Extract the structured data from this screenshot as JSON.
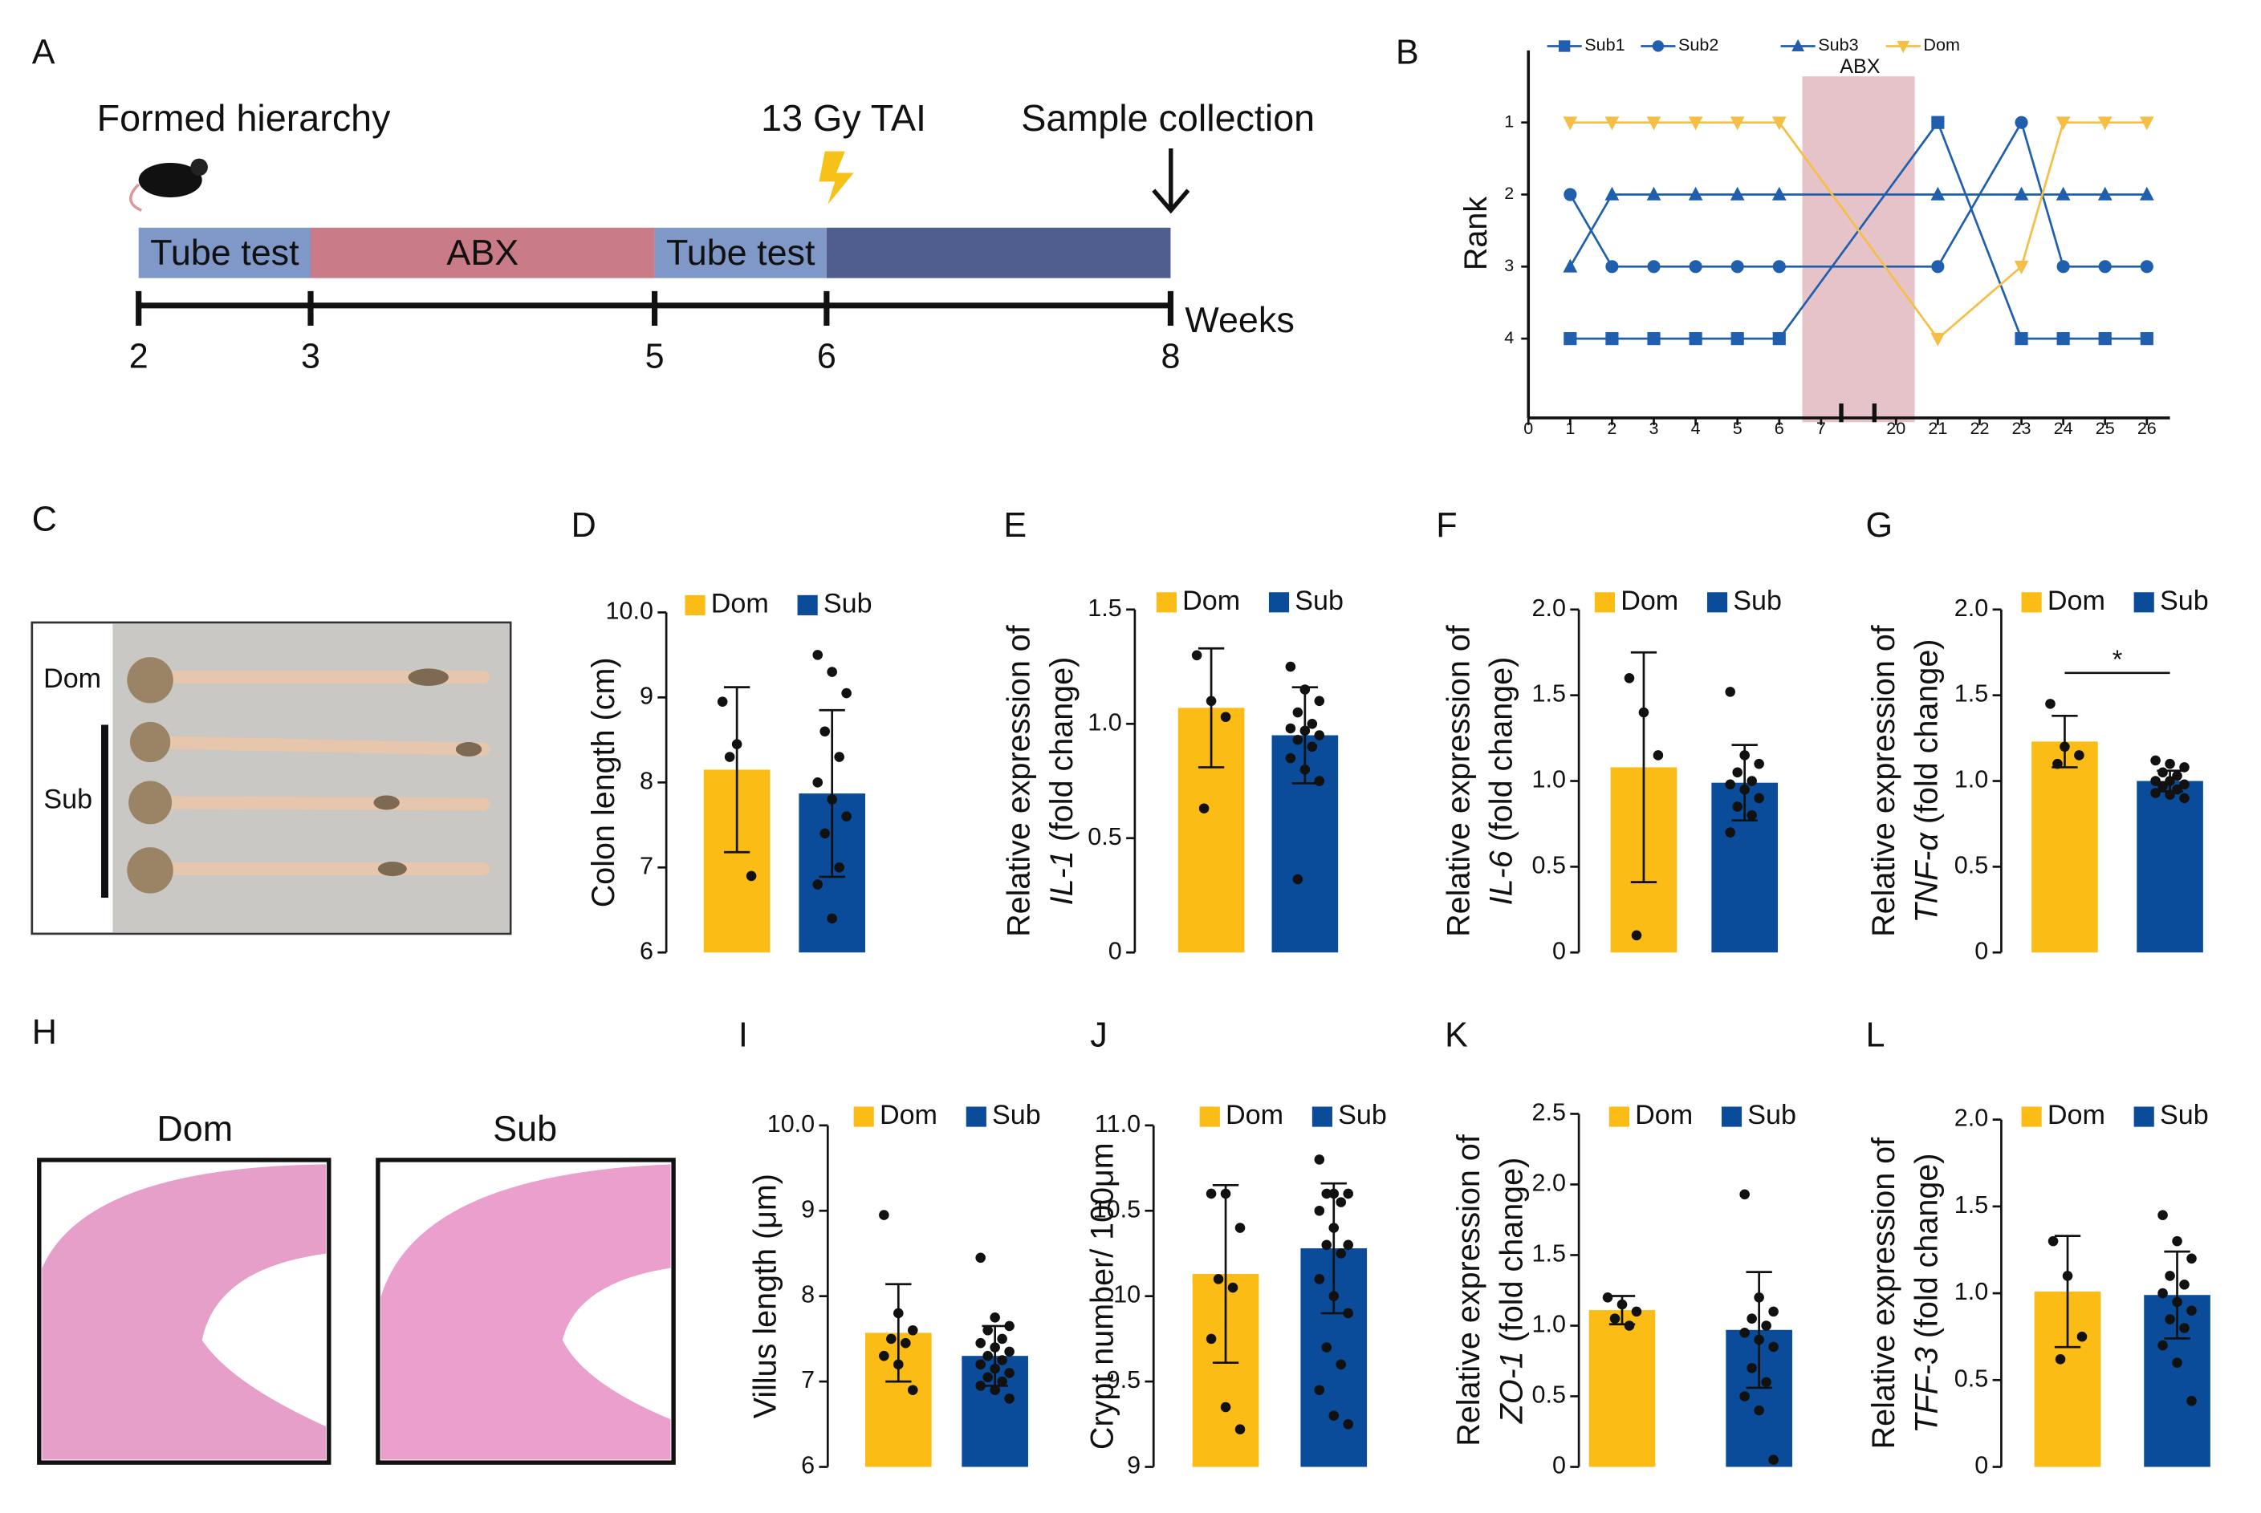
{
  "timeline": {
    "label": "A",
    "events": [
      "Formed hierarchy",
      "13 Gy TAI",
      "Sample collection"
    ],
    "segments": [
      {
        "label": "Tube test",
        "from": 2,
        "to": 3,
        "color": "#8098c8"
      },
      {
        "label": "ABX",
        "from": 3,
        "to": 5,
        "color": "#c97c88"
      },
      {
        "label": "Tube test",
        "from": 5,
        "to": 6,
        "color": "#8098c8"
      },
      {
        "from": 6,
        "to": 8,
        "color": "#4f5e8e"
      }
    ],
    "weeks": [
      2,
      3,
      5,
      6,
      8
    ],
    "unit": "Weeks"
  },
  "photos": [
    {
      "label": "C",
      "groups": [
        "Dom",
        "Sub"
      ]
    },
    {
      "label": "H",
      "groups": [
        "Dom",
        "Sub"
      ]
    }
  ],
  "chart_data": [
    {
      "type": "line",
      "label": "B",
      "ylabel": "Rank",
      "annotation": "ABX",
      "xticks": [
        0,
        1,
        2,
        3,
        4,
        5,
        6,
        7,
        20,
        21,
        22,
        23,
        24,
        25,
        26
      ],
      "x": [
        1,
        2,
        3,
        4,
        5,
        6,
        21,
        23,
        24,
        25,
        26
      ],
      "ylim": [
        5.1,
        0
      ],
      "yticks": [
        1,
        2,
        3,
        4
      ],
      "series": [
        {
          "name": "Sub1",
          "color": "#1f5fad",
          "marker": "square",
          "values": [
            4,
            4,
            4,
            4,
            4,
            4,
            1,
            4,
            4,
            4,
            4
          ]
        },
        {
          "name": "Sub2",
          "color": "#1f5fad",
          "marker": "circle",
          "values": [
            2,
            3,
            3,
            3,
            3,
            3,
            3,
            1,
            3,
            3,
            3
          ]
        },
        {
          "name": "Sub3",
          "color": "#1f5fad",
          "marker": "triangle-up",
          "values": [
            3,
            2,
            2,
            2,
            2,
            2,
            2,
            2,
            2,
            2,
            2
          ]
        },
        {
          "name": "Dom",
          "color": "#f5bf45",
          "marker": "triangle-down",
          "values": [
            1,
            1,
            1,
            1,
            1,
            1,
            4,
            3,
            1,
            1,
            1
          ]
        }
      ]
    },
    {
      "type": "bar",
      "label": "D",
      "ylabel": "Colon length (cm)",
      "categories": [
        "Dom",
        "Sub"
      ],
      "colors": [
        "#fbbc16",
        "#0a4b9a"
      ],
      "values": [
        8.15,
        7.87
      ],
      "errors": [
        0.97,
        0.98
      ],
      "points": [
        [
          8.95,
          8.45,
          6.9,
          8.3
        ],
        [
          9.5,
          9.3,
          9.05,
          8.6,
          8.3,
          8.0,
          7.8,
          7.6,
          7.4,
          7.0,
          6.8,
          6.4
        ]
      ],
      "ylim": [
        6,
        10
      ],
      "yticks": [
        6,
        7,
        8,
        9,
        {
          "value": 10,
          "label": "10.0"
        }
      ]
    },
    {
      "type": "bar",
      "label": "E",
      "ylabel": "Relative expression of",
      "ylabel_gene": "IL-1",
      "ylabel_unit": " (fold change)",
      "categories": [
        "Dom",
        "Sub"
      ],
      "colors": [
        "#fbbc16",
        "#0a4b9a"
      ],
      "values": [
        1.07,
        0.95
      ],
      "errors": [
        0.26,
        0.21
      ],
      "points": [
        [
          1.3,
          1.1,
          1.03,
          0.63
        ],
        [
          1.25,
          1.15,
          1.1,
          1.05,
          1.0,
          0.98,
          0.97,
          0.95,
          0.93,
          0.9,
          0.85,
          0.8,
          0.75,
          0.32
        ]
      ],
      "ylim": [
        0,
        1.5
      ],
      "yticks": [
        0,
        0.5,
        {
          "value": 1,
          "label": "1.0"
        },
        1.5
      ]
    },
    {
      "type": "bar",
      "label": "F",
      "ylabel": "Relative expression of",
      "ylabel_gene": "IL-6",
      "ylabel_unit": " (fold change)",
      "categories": [
        "Dom",
        "Sub"
      ],
      "colors": [
        "#fbbc16",
        "#0a4b9a"
      ],
      "values": [
        1.08,
        0.99
      ],
      "errors": [
        0.67,
        0.22
      ],
      "points": [
        [
          1.6,
          1.4,
          1.15,
          0.1
        ],
        [
          1.52,
          1.15,
          1.1,
          1.05,
          1.0,
          0.98,
          0.95,
          0.9,
          0.85,
          0.8,
          0.7
        ]
      ],
      "ylim": [
        0,
        2
      ],
      "yticks": [
        0,
        0.5,
        {
          "value": 1,
          "label": "1.0"
        },
        1.5,
        {
          "value": 2,
          "label": "2.0"
        }
      ]
    },
    {
      "type": "bar",
      "label": "G",
      "ylabel": "Relative expression of",
      "ylabel_gene": "TNF-α",
      "ylabel_unit": " (fold change)",
      "categories": [
        "Dom",
        "Sub"
      ],
      "colors": [
        "#fbbc16",
        "#0a4b9a"
      ],
      "values": [
        1.23,
        1.0
      ],
      "errors": [
        0.15,
        0.06
      ],
      "points": [
        [
          1.45,
          1.2,
          1.15,
          1.1
        ],
        [
          1.12,
          1.1,
          1.08,
          1.05,
          1.03,
          1.0,
          1.0,
          0.98,
          0.97,
          0.95,
          0.93,
          0.92,
          0.9
        ]
      ],
      "significance": "*",
      "ylim": [
        0,
        2
      ],
      "yticks": [
        0,
        0.5,
        {
          "value": 1,
          "label": "1.0"
        },
        1.5,
        {
          "value": 2,
          "label": "2.0"
        }
      ]
    },
    {
      "type": "bar",
      "label": "I",
      "ylabel": "Villus length (μm)",
      "categories": [
        "Dom",
        "Sub"
      ],
      "colors": [
        "#fbbc16",
        "#0a4b9a"
      ],
      "values": [
        7.57,
        7.3
      ],
      "errors": [
        0.57,
        0.35
      ],
      "points": [
        [
          8.95,
          7.8,
          7.6,
          7.5,
          7.45,
          7.3,
          7.2,
          6.9
        ],
        [
          8.45,
          7.75,
          7.65,
          7.6,
          7.5,
          7.45,
          7.4,
          7.35,
          7.3,
          7.25,
          7.2,
          7.15,
          7.1,
          7.05,
          7.0,
          6.95,
          6.9,
          6.8
        ]
      ],
      "ylim": [
        6,
        10
      ],
      "yticks": [
        6,
        7,
        8,
        9,
        {
          "value": 10,
          "label": "10.0"
        }
      ]
    },
    {
      "type": "bar",
      "label": "J",
      "ylabel": "Crypt number/ 100μm",
      "categories": [
        "Dom",
        "Sub"
      ],
      "colors": [
        "#fbbc16",
        "#0a4b9a"
      ],
      "values": [
        10.13,
        10.28
      ],
      "errors": [
        0.52,
        0.38
      ],
      "points": [
        [
          10.6,
          10.6,
          10.4,
          10.1,
          10.05,
          9.75,
          9.35,
          9.22
        ],
        [
          10.8,
          10.6,
          10.6,
          10.6,
          10.55,
          10.5,
          10.4,
          10.3,
          10.3,
          10.25,
          10.1,
          10.0,
          9.9,
          9.7,
          9.6,
          9.45,
          9.3,
          9.25
        ]
      ],
      "ylim": [
        9,
        11
      ],
      "yticks": [
        9,
        9.5,
        10,
        10.5,
        {
          "value": 11,
          "label": "11.0"
        }
      ]
    },
    {
      "type": "bar",
      "label": "K",
      "ylabel": "Relative expression of",
      "ylabel_gene": "ZO-1",
      "ylabel_unit": " (fold change)",
      "categories": [
        "Dom",
        "Sub"
      ],
      "colors": [
        "#fbbc16",
        "#0a4b9a"
      ],
      "values": [
        1.11,
        0.97
      ],
      "errors": [
        0.1,
        0.41
      ],
      "points": [
        [
          1.2,
          1.15,
          1.1,
          1.05,
          1.0
        ],
        [
          1.93,
          1.2,
          1.1,
          1.05,
          1.0,
          0.95,
          0.9,
          0.85,
          0.7,
          0.6,
          0.5,
          0.4,
          0.05
        ]
      ],
      "ylim": [
        0,
        2.5
      ],
      "yticks": [
        0,
        0.5,
        {
          "value": 1,
          "label": "1.0"
        },
        1.5,
        {
          "value": 2,
          "label": "2.0"
        },
        2.5
      ]
    },
    {
      "type": "bar",
      "label": "L",
      "ylabel": "Relative expression of",
      "ylabel_gene": "TFF-3",
      "ylabel_unit": " (fold change)",
      "categories": [
        "Dom",
        "Sub"
      ],
      "colors": [
        "#fbbc16",
        "#0a4b9a"
      ],
      "values": [
        1.01,
        0.99
      ],
      "errors": [
        0.32,
        0.25
      ],
      "points": [
        [
          1.3,
          1.1,
          0.75,
          0.62
        ],
        [
          1.45,
          1.3,
          1.2,
          1.1,
          1.05,
          1.0,
          0.95,
          0.9,
          0.85,
          0.8,
          0.7,
          0.6,
          0.38
        ]
      ],
      "ylim": [
        0,
        2
      ],
      "yticks": [
        0,
        0.5,
        {
          "value": 1,
          "label": "1.0"
        },
        1.5,
        {
          "value": 2,
          "label": "2.0"
        }
      ]
    }
  ]
}
